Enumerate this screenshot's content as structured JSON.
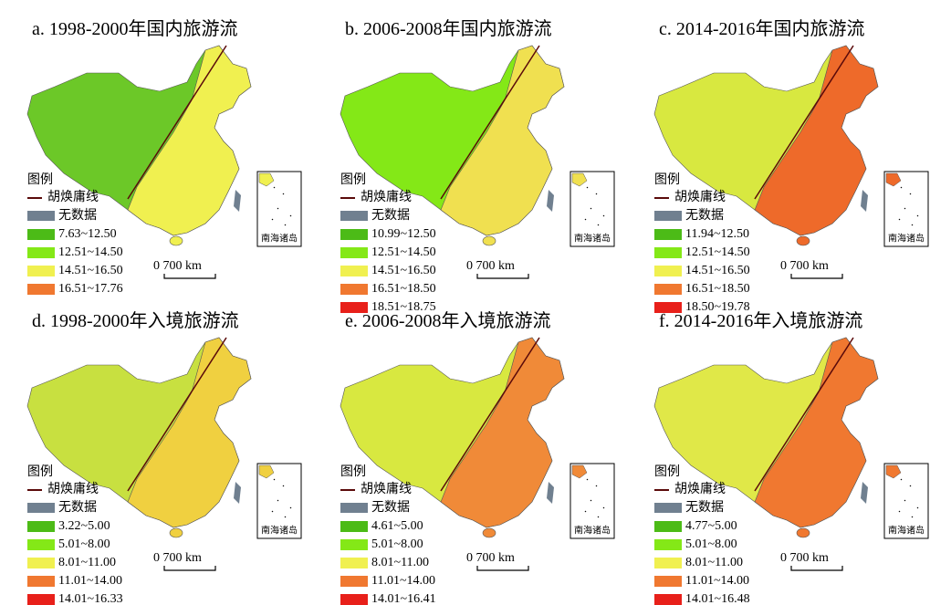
{
  "panels": [
    {
      "title": "a. 1998-2000年国内旅游流",
      "legend_title": "图例",
      "line_label": "胡焕庸线",
      "nodata_label": "无数据",
      "scale_label": "0 700 km",
      "inset_label": "南海诸岛",
      "map_colors": [
        "#6cc828",
        "#f0f050"
      ],
      "classes": [
        {
          "label": "7.63~12.50",
          "color": "#4cbb17"
        },
        {
          "label": "12.51~14.50",
          "color": "#84e817"
        },
        {
          "label": "14.51~16.50",
          "color": "#f0f050"
        },
        {
          "label": "16.51~17.76",
          "color": "#f07830"
        }
      ]
    },
    {
      "title": "b. 2006-2008年国内旅游流",
      "legend_title": "图例",
      "line_label": "胡焕庸线",
      "nodata_label": "无数据",
      "scale_label": "0 700 km",
      "inset_label": "南海诸岛",
      "map_colors": [
        "#84e817",
        "#f0e050"
      ],
      "classes": [
        {
          "label": "10.99~12.50",
          "color": "#4cbb17"
        },
        {
          "label": "12.51~14.50",
          "color": "#84e817"
        },
        {
          "label": "14.51~16.50",
          "color": "#f0f050"
        },
        {
          "label": "16.51~18.50",
          "color": "#f07830"
        },
        {
          "label": "18.51~18.75",
          "color": "#e8201a"
        }
      ]
    },
    {
      "title": "c. 2014-2016年国内旅游流",
      "legend_title": "图例",
      "line_label": "胡焕庸线",
      "nodata_label": "无数据",
      "scale_label": "0 700 km",
      "inset_label": "南海诸岛",
      "map_colors": [
        "#d8e840",
        "#ee6a2a"
      ],
      "classes": [
        {
          "label": "11.94~12.50",
          "color": "#4cbb17"
        },
        {
          "label": "12.51~14.50",
          "color": "#84e817"
        },
        {
          "label": "14.51~16.50",
          "color": "#f0f050"
        },
        {
          "label": "16.51~18.50",
          "color": "#f07830"
        },
        {
          "label": "18.50~19.78",
          "color": "#e8201a"
        }
      ]
    },
    {
      "title": "d. 1998-2000年入境旅游流",
      "legend_title": "图例",
      "line_label": "胡焕庸线",
      "nodata_label": "无数据",
      "scale_label": "0 700 km",
      "inset_label": "南海诸岛",
      "map_colors": [
        "#c8e040",
        "#f0d040"
      ],
      "classes": [
        {
          "label": "3.22~5.00",
          "color": "#4cbb17"
        },
        {
          "label": "5.01~8.00",
          "color": "#84e817"
        },
        {
          "label": "8.01~11.00",
          "color": "#f0f050"
        },
        {
          "label": "11.01~14.00",
          "color": "#f07830"
        },
        {
          "label": "14.01~16.33",
          "color": "#e8201a"
        }
      ]
    },
    {
      "title": "e. 2006-2008年入境旅游流",
      "legend_title": "图例",
      "line_label": "胡焕庸线",
      "nodata_label": "无数据",
      "scale_label": "0 700 km",
      "inset_label": "南海诸岛",
      "map_colors": [
        "#d8e840",
        "#f08a38"
      ],
      "classes": [
        {
          "label": "4.61~5.00",
          "color": "#4cbb17"
        },
        {
          "label": "5.01~8.00",
          "color": "#84e817"
        },
        {
          "label": "8.01~11.00",
          "color": "#f0f050"
        },
        {
          "label": "11.01~14.00",
          "color": "#f07830"
        },
        {
          "label": "14.01~16.41",
          "color": "#e8201a"
        }
      ]
    },
    {
      "title": "f. 2014-2016年入境旅游流",
      "legend_title": "图例",
      "line_label": "胡焕庸线",
      "nodata_label": "无数据",
      "scale_label": "0 700 km",
      "inset_label": "南海诸岛",
      "map_colors": [
        "#e0e848",
        "#f07830"
      ],
      "classes": [
        {
          "label": "4.77~5.00",
          "color": "#4cbb17"
        },
        {
          "label": "5.01~8.00",
          "color": "#84e817"
        },
        {
          "label": "8.01~11.00",
          "color": "#f0f050"
        },
        {
          "label": "11.01~14.00",
          "color": "#f07830"
        },
        {
          "label": "14.01~16.48",
          "color": "#e8201a"
        }
      ]
    }
  ]
}
